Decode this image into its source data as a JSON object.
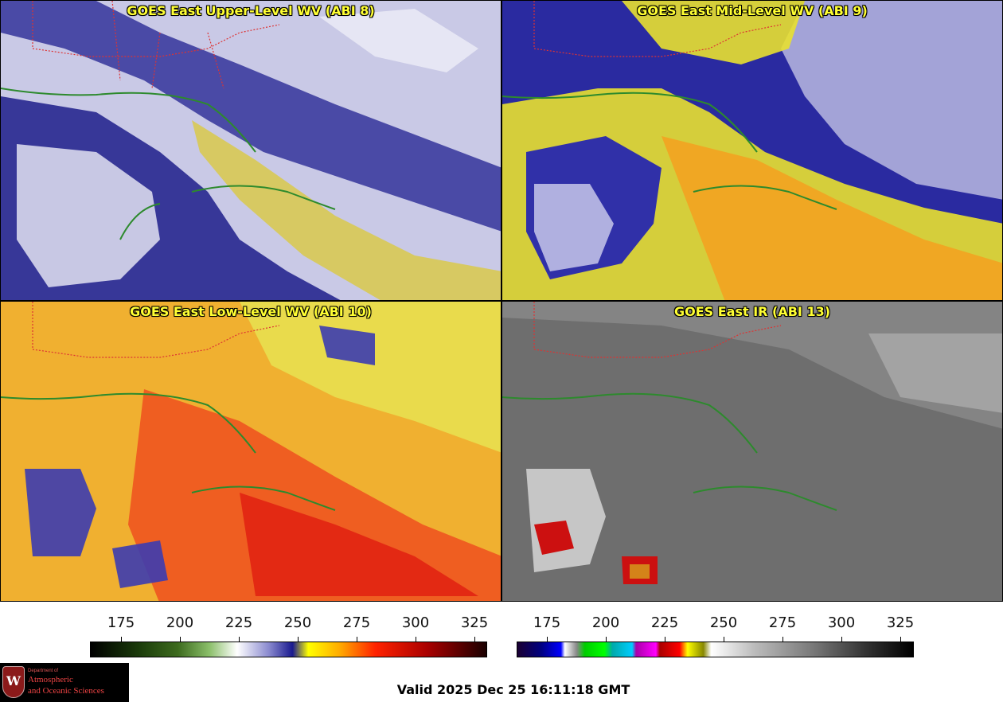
{
  "panels": [
    {
      "title": "GOES East Upper-Level WV (ABI 8)"
    },
    {
      "title": "GOES East Mid-Level WV (ABI 9)"
    },
    {
      "title": "GOES East Low-Level WV (ABI 10)"
    },
    {
      "title": "GOES East IR (ABI 13)"
    }
  ],
  "colorbars": {
    "wv": {
      "ticks": [
        "175",
        "200",
        "225",
        "250",
        "275",
        "300",
        "325"
      ]
    },
    "ir": {
      "ticks": [
        "175",
        "200",
        "225",
        "250",
        "275",
        "300",
        "325"
      ]
    }
  },
  "logo": {
    "line1": "Department of",
    "line2": "Atmospheric",
    "line3": "and Oceanic Sciences",
    "crest_letter": "W"
  },
  "valid_time": "Valid 2025 Dec 25 16:11:18 GMT"
}
